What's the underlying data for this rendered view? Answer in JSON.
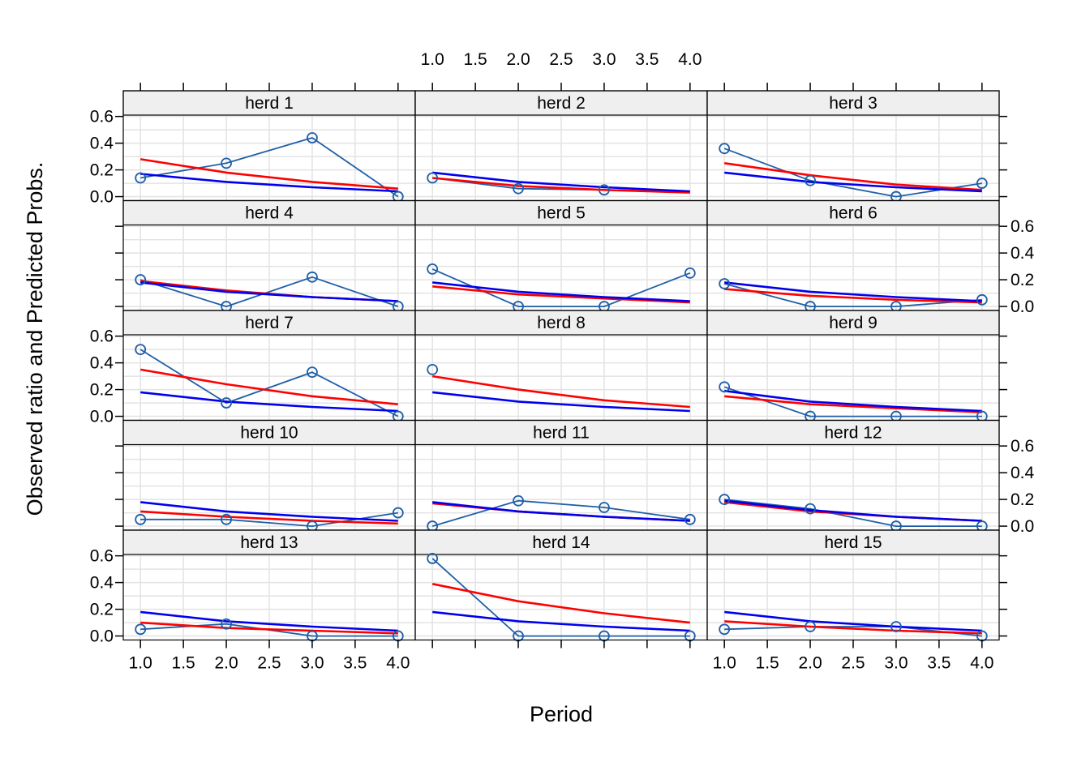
{
  "chart_data": {
    "type": "line",
    "layout": "lattice 3 columns x 5 rows",
    "xlabel": "Period",
    "ylabel": "Observed ratio and Predicted Probs.",
    "xlim": [
      0.8,
      4.2
    ],
    "ylim": [
      -0.03,
      0.61
    ],
    "x": [
      1,
      2,
      3,
      4
    ],
    "x_ticks": [
      "1.0",
      "1.5",
      "2.0",
      "2.5",
      "3.0",
      "3.5",
      "4.0"
    ],
    "y_ticks": [
      "0.0",
      "0.2",
      "0.4",
      "0.6"
    ],
    "grid": true,
    "colors": {
      "observed": "#1f5fa8",
      "predicted_red": "#ff0000",
      "predicted_blue": "#0000ee",
      "strip_bg": "#efefef",
      "grid": "#e3e3e3"
    },
    "panels": [
      {
        "label": "herd 1",
        "observed": [
          0.14,
          0.25,
          0.44,
          0.0
        ],
        "red": [
          0.28,
          0.18,
          0.11,
          0.06
        ],
        "blue": [
          0.17,
          0.11,
          0.07,
          0.04
        ]
      },
      {
        "label": "herd 2",
        "observed": [
          0.14,
          0.06,
          0.05,
          null
        ],
        "red": [
          0.14,
          0.08,
          0.05,
          0.03
        ],
        "blue": [
          0.18,
          0.11,
          0.07,
          0.04
        ]
      },
      {
        "label": "herd 3",
        "observed": [
          0.36,
          0.12,
          0.0,
          0.1
        ],
        "red": [
          0.25,
          0.16,
          0.09,
          0.05
        ],
        "blue": [
          0.18,
          0.11,
          0.07,
          0.04
        ]
      },
      {
        "label": "herd 4",
        "observed": [
          0.2,
          0.0,
          0.22,
          0.0
        ],
        "red": [
          0.19,
          0.12,
          0.07,
          0.04
        ],
        "blue": [
          0.18,
          0.11,
          0.07,
          0.04
        ]
      },
      {
        "label": "herd 5",
        "observed": [
          0.28,
          0.0,
          0.0,
          0.25
        ],
        "red": [
          0.15,
          0.09,
          0.06,
          0.03
        ],
        "blue": [
          0.18,
          0.11,
          0.07,
          0.04
        ]
      },
      {
        "label": "herd 6",
        "observed": [
          0.17,
          0.0,
          0.0,
          0.05
        ],
        "red": [
          0.13,
          0.08,
          0.05,
          0.03
        ],
        "blue": [
          0.18,
          0.11,
          0.07,
          0.04
        ]
      },
      {
        "label": "herd 7",
        "observed": [
          0.5,
          0.1,
          0.33,
          0.0
        ],
        "red": [
          0.35,
          0.24,
          0.15,
          0.09
        ],
        "blue": [
          0.18,
          0.11,
          0.07,
          0.04
        ]
      },
      {
        "label": "herd 8",
        "observed": [
          0.35,
          null,
          null,
          null
        ],
        "red": [
          0.3,
          0.2,
          0.12,
          0.07
        ],
        "blue": [
          0.18,
          0.11,
          0.07,
          0.04
        ]
      },
      {
        "label": "herd 9",
        "observed": [
          0.22,
          0.0,
          0.0,
          0.0
        ],
        "red": [
          0.15,
          0.09,
          0.06,
          0.03
        ],
        "blue": [
          0.19,
          0.11,
          0.07,
          0.04
        ]
      },
      {
        "label": "herd 10",
        "observed": [
          0.05,
          0.05,
          0.0,
          0.1
        ],
        "red": [
          0.11,
          0.07,
          0.04,
          0.02
        ],
        "blue": [
          0.18,
          0.11,
          0.07,
          0.04
        ]
      },
      {
        "label": "herd 11",
        "observed": [
          0.0,
          0.19,
          0.14,
          0.05
        ],
        "red": [
          0.17,
          0.11,
          0.07,
          0.04
        ],
        "blue": [
          0.18,
          0.11,
          0.07,
          0.04
        ]
      },
      {
        "label": "herd 12",
        "observed": [
          0.2,
          0.13,
          0.0,
          0.0
        ],
        "red": [
          0.18,
          0.11,
          0.07,
          0.04
        ],
        "blue": [
          0.19,
          0.12,
          0.07,
          0.04
        ]
      },
      {
        "label": "herd 13",
        "observed": [
          0.05,
          0.09,
          0.0,
          0.0
        ],
        "red": [
          0.1,
          0.06,
          0.04,
          0.02
        ],
        "blue": [
          0.18,
          0.11,
          0.07,
          0.04
        ]
      },
      {
        "label": "herd 14",
        "observed": [
          0.58,
          0.0,
          0.0,
          0.0
        ],
        "red": [
          0.39,
          0.26,
          0.17,
          0.1
        ],
        "blue": [
          0.18,
          0.11,
          0.07,
          0.04
        ]
      },
      {
        "label": "herd 15",
        "observed": [
          0.05,
          0.07,
          0.07,
          0.0
        ],
        "red": [
          0.11,
          0.07,
          0.04,
          0.02
        ],
        "blue": [
          0.18,
          0.11,
          0.07,
          0.04
        ]
      }
    ]
  }
}
